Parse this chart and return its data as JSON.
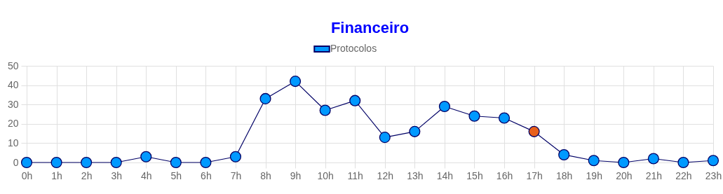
{
  "chart_data": {
    "type": "line",
    "title": "Financeiro",
    "categories": [
      "0h",
      "1h",
      "2h",
      "3h",
      "4h",
      "5h",
      "6h",
      "7h",
      "8h",
      "9h",
      "10h",
      "11h",
      "12h",
      "13h",
      "14h",
      "15h",
      "16h",
      "17h",
      "18h",
      "19h",
      "20h",
      "21h",
      "22h",
      "23h"
    ],
    "series": [
      {
        "name": "Protocolos",
        "color": "#0099ff",
        "values": [
          0,
          0,
          0,
          0,
          3,
          0,
          0,
          3,
          33,
          42,
          27,
          32,
          13,
          16,
          29,
          24,
          23,
          16,
          4,
          1,
          0,
          2,
          0,
          1
        ],
        "colors": [
          "#0099ff",
          "#0099ff",
          "#0099ff",
          "#0099ff",
          "#0099ff",
          "#0099ff",
          "#0099ff",
          "#0099ff",
          "#0099ff",
          "#0099ff",
          "#0099ff",
          "#0099ff",
          "#0099ff",
          "#0099ff",
          "#0099ff",
          "#0099ff",
          "#0099ff",
          "#e8601c",
          "#0099ff",
          "#0099ff",
          "#0099ff",
          "#0099ff",
          "#0099ff",
          "#0099ff"
        ]
      }
    ],
    "ylim": [
      0,
      50
    ],
    "yticks": [
      0,
      10,
      20,
      30,
      40,
      50
    ],
    "grid": true,
    "legend": "top",
    "marker": "circle",
    "line_style": "solid"
  }
}
